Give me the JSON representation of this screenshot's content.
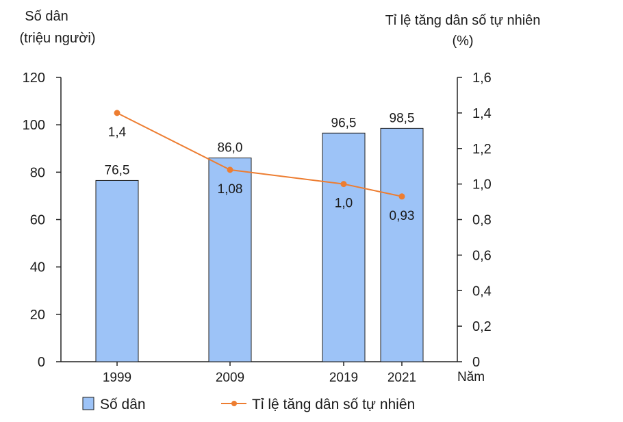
{
  "chart_data": {
    "type": "bar+line",
    "title": "",
    "categories": [
      "1999",
      "2009",
      "2019",
      "2021"
    ],
    "x": [
      1999,
      2009,
      2019,
      2021
    ],
    "xlabel": "Năm",
    "y_left": {
      "label_line1": "Số dân",
      "label_line2": "(triệu người)",
      "lim": [
        0,
        120
      ],
      "ticks": [
        0,
        20,
        40,
        60,
        80,
        100,
        120
      ],
      "tick_labels": [
        "0",
        "20",
        "40",
        "60",
        "80",
        "100",
        "120"
      ]
    },
    "y_right": {
      "label_line1": "Tỉ lệ tăng dân số tự nhiên",
      "label_line2": "(%)",
      "lim": [
        0,
        1.6
      ],
      "ticks": [
        0,
        0.2,
        0.4,
        0.6,
        0.8,
        1.0,
        1.2,
        1.4,
        1.6
      ],
      "tick_labels": [
        "0",
        "0,2",
        "0,4",
        "0,6",
        "0,8",
        "1,0",
        "1,2",
        "1,4",
        "1,6"
      ]
    },
    "series": [
      {
        "name": "Số dân",
        "type": "bar",
        "axis": "left",
        "values": [
          76.5,
          86.0,
          96.5,
          98.5
        ],
        "labels": [
          "76,5",
          "86,0",
          "96,5",
          "98,5"
        ],
        "color": "#9dc3f7",
        "stroke": "#1f1f1f"
      },
      {
        "name": "Tỉ lệ tăng dân số tự nhiên",
        "type": "line",
        "axis": "right",
        "values": [
          1.4,
          1.08,
          1.0,
          0.93
        ],
        "labels": [
          "1,4",
          "1,08",
          "1,0",
          "0,93"
        ],
        "color": "#ed7d31"
      }
    ],
    "grid": false,
    "legend": "bottom"
  }
}
